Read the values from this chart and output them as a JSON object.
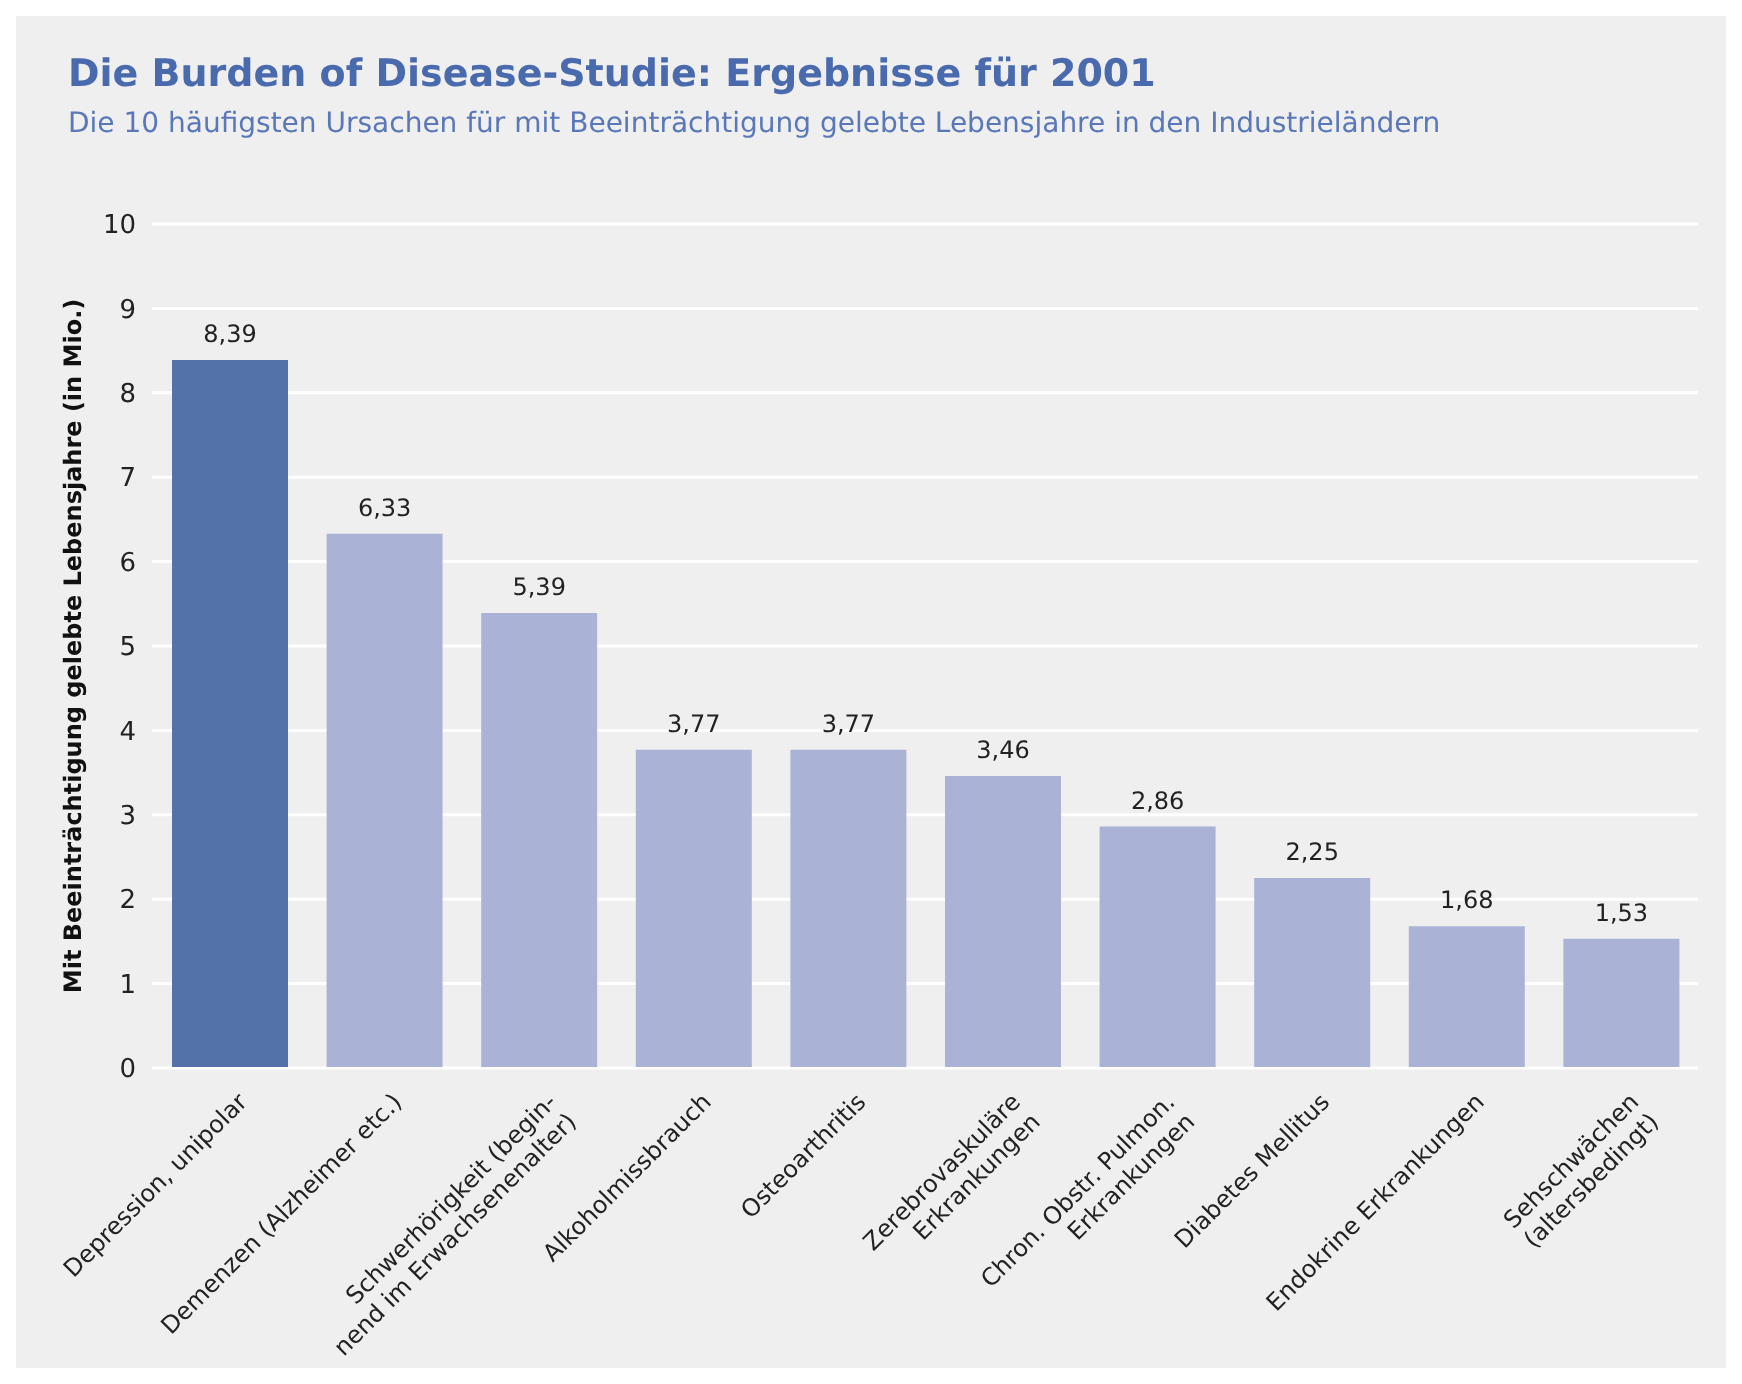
{
  "chart_data": {
    "type": "bar",
    "title": "Die Burden of Disease-Studie: Ergebnisse für 2001",
    "subtitle": "Die 10 häufigsten Ursachen für mit Beeinträchtigung gelebte Lebensjahre in den Industrieländern",
    "ylabel": "Mit Beeinträchtigung gelebte Lebensjahre (in Mio.)",
    "categories": [
      "Depression, unipolar",
      "Demenzen (Alzheimer etc.)",
      "Schwerhörigkeit (begin-\nnend im Erwachsenenalter)",
      "Alkoholmissbrauch",
      "Osteoarthritis",
      "Zerebrovaskuläre\nErkrankungen",
      "Chron. Obstr. Pulmon.\nErkrankungen",
      "Diabetes Mellitus",
      "Endokrine Erkrankungen",
      "Sehschwächen\n(altersbedingt)"
    ],
    "values": [
      8.39,
      6.33,
      5.39,
      3.77,
      3.77,
      3.46,
      2.86,
      2.25,
      1.68,
      1.53
    ],
    "value_labels": [
      "8,39",
      "6,33",
      "5,39",
      "3,77",
      "3,77",
      "3,46",
      "2,86",
      "2,25",
      "1,68",
      "1,53"
    ],
    "colors": [
      "#5372aa",
      "#aab3d6",
      "#aab3d6",
      "#aab3d6",
      "#aab3d6",
      "#aab3d6",
      "#aab3d6",
      "#aab3d6",
      "#aab3d6",
      "#aab3d6"
    ],
    "ylim": [
      0,
      10
    ],
    "yticks": [
      0,
      1,
      2,
      3,
      4,
      5,
      6,
      7,
      8,
      9,
      10
    ],
    "grid": "y",
    "legend": false
  }
}
